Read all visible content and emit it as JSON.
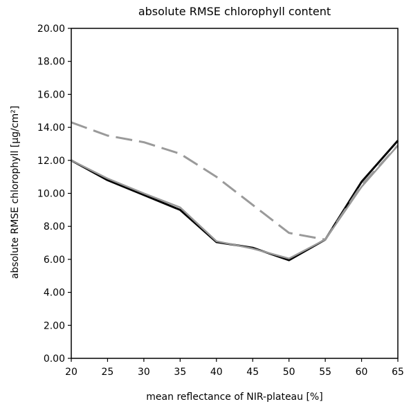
{
  "chart_data": {
    "type": "line",
    "title": "absolute RMSE chlorophyll content",
    "xlabel": "mean reflectance of NIR-plateau [%]",
    "ylabel": "absolute RMSE chlorophyll [µg/cm²]",
    "xlim": [
      20,
      65
    ],
    "ylim": [
      0,
      20
    ],
    "x_ticks": [
      "20",
      "25",
      "30",
      "35",
      "40",
      "45",
      "50",
      "55",
      "60",
      "65"
    ],
    "y_ticks": [
      "0.00",
      "2.00",
      "4.00",
      "6.00",
      "8.00",
      "10.00",
      "12.00",
      "14.00",
      "16.00",
      "18.00",
      "20.00"
    ],
    "grid": false,
    "legend": "none",
    "x": [
      20,
      25,
      30,
      35,
      40,
      45,
      50,
      55,
      60,
      65
    ],
    "series": [
      {
        "values": [
          12.0,
          10.8,
          9.9,
          9.0,
          7.05,
          6.7,
          5.95,
          7.2,
          10.7,
          13.2
        ],
        "color": "#000000",
        "dash": "solid"
      },
      {
        "values": [
          12.0,
          10.9,
          10.0,
          9.15,
          7.1,
          6.65,
          6.05,
          7.2,
          10.4,
          12.9
        ],
        "color": "#999999",
        "dash": "solid"
      },
      {
        "values": [
          14.3,
          13.5,
          13.1,
          12.4,
          11.0,
          9.3,
          7.6,
          7.2,
          10.5,
          12.9
        ],
        "color": "#9a9a9a",
        "dash": "dashed"
      }
    ]
  }
}
